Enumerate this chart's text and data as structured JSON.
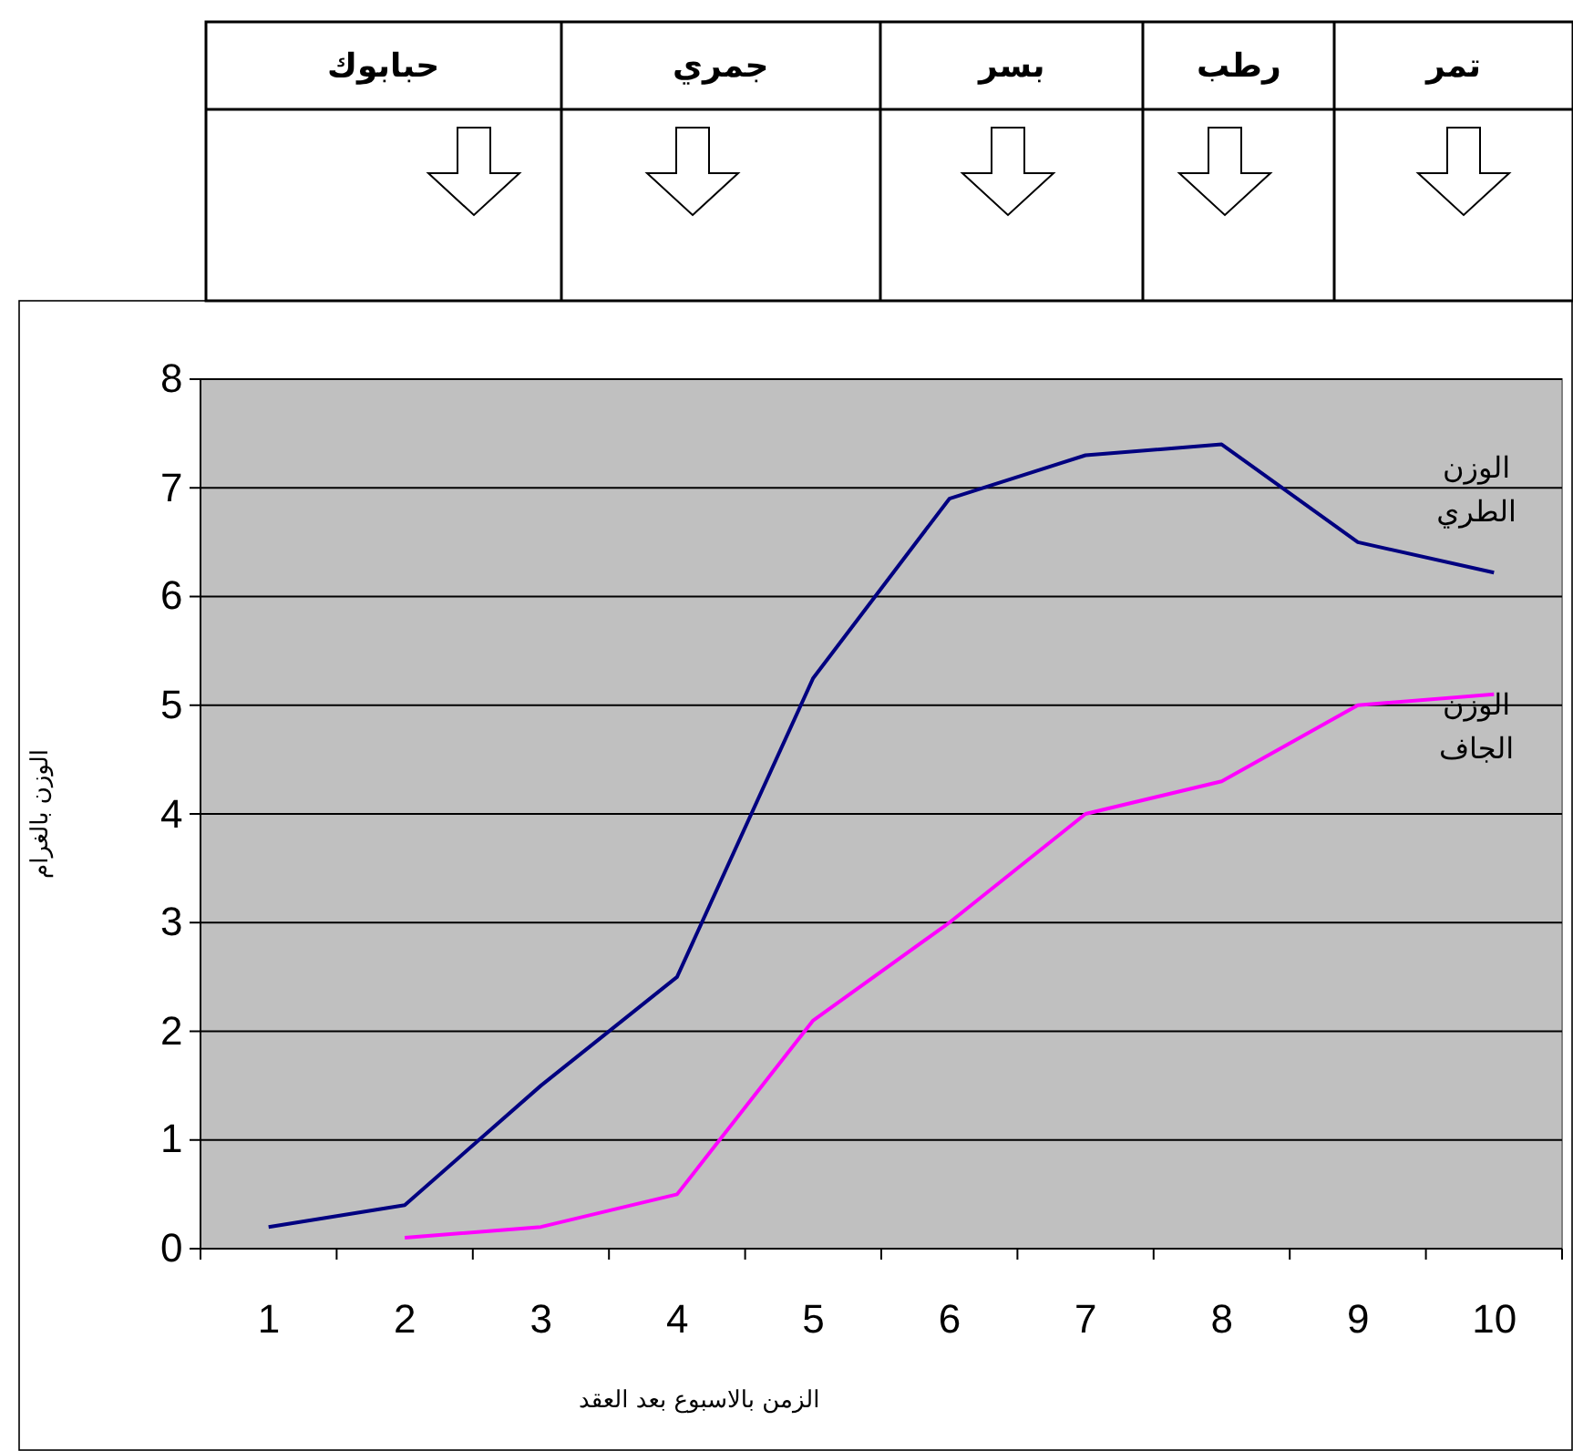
{
  "chart_data": {
    "type": "line",
    "xlabel": "الزمن بالاسبوع بعد العقد",
    "ylabel": "الوزن بالغرام",
    "categories": [
      "1",
      "2",
      "3",
      "4",
      "5",
      "6",
      "7",
      "8",
      "9",
      "10"
    ],
    "series": [
      {
        "name": "الوزن الطري",
        "color": "#000080",
        "values": [
          0.2,
          0.4,
          1.5,
          2.5,
          5.25,
          6.9,
          7.3,
          7.4,
          6.5,
          6.22
        ]
      },
      {
        "name": "الوزن الجاف",
        "color": "#ff00ff",
        "values": [
          null,
          0.1,
          0.2,
          0.5,
          2.1,
          3.0,
          4.0,
          4.3,
          5.0,
          5.1
        ]
      }
    ],
    "ylim": [
      0,
      8
    ],
    "yticks": [
      0,
      1,
      2,
      3,
      4,
      5,
      6,
      7,
      8
    ],
    "grid": "y",
    "legend": false,
    "marker": "none",
    "line_style": "solid",
    "annotations": [
      "تمر",
      "رطب",
      "بسر",
      "جمري",
      "حبابوك"
    ]
  }
}
